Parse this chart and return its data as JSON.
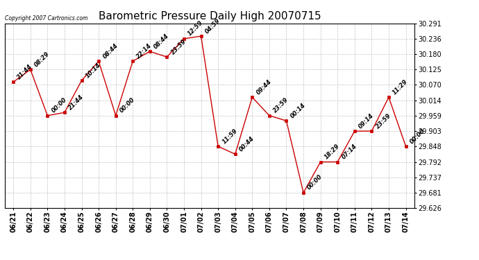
{
  "title": "Barometric Pressure Daily High 20070715",
  "copyright": "Copyright 2007 Cartronics.com",
  "x_labels": [
    "06/21",
    "06/22",
    "06/23",
    "06/24",
    "06/25",
    "06/26",
    "06/27",
    "06/28",
    "06/29",
    "06/30",
    "07/01",
    "07/02",
    "07/03",
    "07/04",
    "07/05",
    "07/06",
    "07/07",
    "07/08",
    "07/09",
    "07/10",
    "07/11",
    "07/12",
    "07/13",
    "07/14"
  ],
  "y_values": [
    30.08,
    30.125,
    29.959,
    29.97,
    30.085,
    30.155,
    29.959,
    30.155,
    30.19,
    30.17,
    30.236,
    30.245,
    29.848,
    29.82,
    30.025,
    29.959,
    29.94,
    29.681,
    29.792,
    29.792,
    29.903,
    29.903,
    30.025,
    29.848
  ],
  "point_labels": [
    "21:44",
    "08:29",
    "00:00",
    "21:44",
    "10:14",
    "08:44",
    "00:00",
    "22:14",
    "08:44",
    "23:59",
    "12:59",
    "04:59",
    "11:59",
    "00:44",
    "09:44",
    "23:59",
    "00:14",
    "00:00",
    "18:29",
    "07:14",
    "09:14",
    "23:59",
    "11:29",
    "00:00"
  ],
  "y_ticks": [
    29.626,
    29.681,
    29.737,
    29.792,
    29.848,
    29.903,
    29.959,
    30.014,
    30.07,
    30.125,
    30.18,
    30.236,
    30.291
  ],
  "y_min": 29.626,
  "y_max": 30.291,
  "line_color": "#cc0000",
  "marker_color": "#cc0000",
  "bg_color": "#ffffff",
  "grid_color": "#bbbbbb",
  "title_fontsize": 11,
  "tick_fontsize": 7,
  "annot_fontsize": 6
}
